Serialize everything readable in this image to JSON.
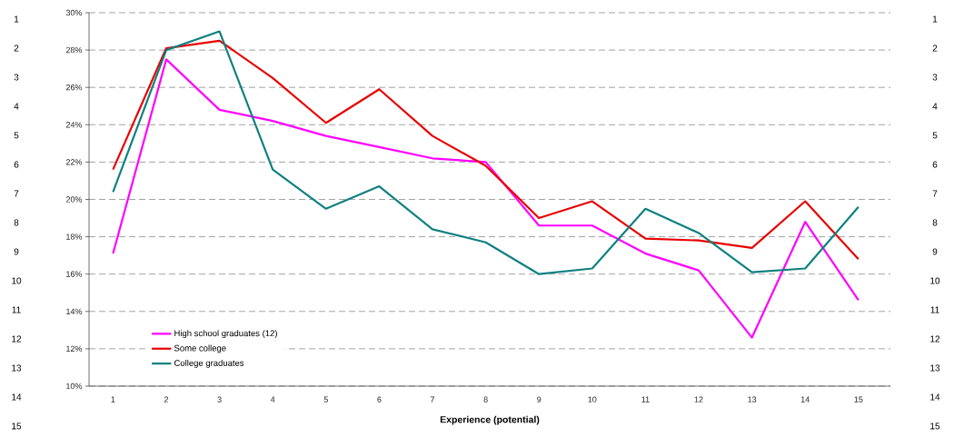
{
  "chart_data": {
    "type": "line",
    "xlabel": "Experience (potential)",
    "categories": [
      "1",
      "2",
      "3",
      "4",
      "5",
      "6",
      "7",
      "8",
      "9",
      "10",
      "11",
      "12",
      "13",
      "14",
      "15"
    ],
    "series": [
      {
        "name": "High school graduates (12)",
        "color": "#ff00ff",
        "values": [
          17.1,
          27.5,
          24.8,
          24.2,
          23.4,
          22.8,
          22.2,
          22.0,
          18.6,
          18.6,
          17.1,
          16.2,
          12.6,
          18.8,
          14.6
        ]
      },
      {
        "name": "Some college",
        "color": "#e80000",
        "values": [
          21.6,
          28.1,
          28.5,
          26.5,
          24.1,
          25.9,
          23.4,
          21.8,
          19.0,
          19.9,
          17.9,
          17.8,
          17.4,
          19.9,
          16.8
        ]
      },
      {
        "name": "College graduates",
        "color": "#108080",
        "values": [
          20.4,
          28.0,
          29.0,
          21.6,
          19.5,
          20.7,
          18.4,
          17.7,
          16.0,
          16.3,
          19.5,
          18.2,
          16.1,
          16.3,
          19.6
        ]
      }
    ],
    "ylim": [
      10,
      30
    ],
    "yticks": [
      {
        "value": 10,
        "label": "10%"
      },
      {
        "value": 12,
        "label": "12%"
      },
      {
        "value": 14,
        "label": "14%"
      },
      {
        "value": 16,
        "label": "16%"
      },
      {
        "value": 18,
        "label": "18%"
      },
      {
        "value": 20,
        "label": "20%"
      },
      {
        "value": 22,
        "label": "22%"
      },
      {
        "value": 24,
        "label": "24%"
      },
      {
        "value": 26,
        "label": "26%"
      },
      {
        "value": 28,
        "label": "28%"
      },
      {
        "value": 30,
        "label": "30%"
      }
    ],
    "grid": "y",
    "legend": "bottom left",
    "marker": "none",
    "line_style": "solid",
    "annotations": [
      "1",
      "2",
      "3",
      "4",
      "5",
      "6",
      "7",
      "8",
      "9",
      "10",
      "11",
      "12",
      "13",
      "14",
      "15"
    ]
  }
}
